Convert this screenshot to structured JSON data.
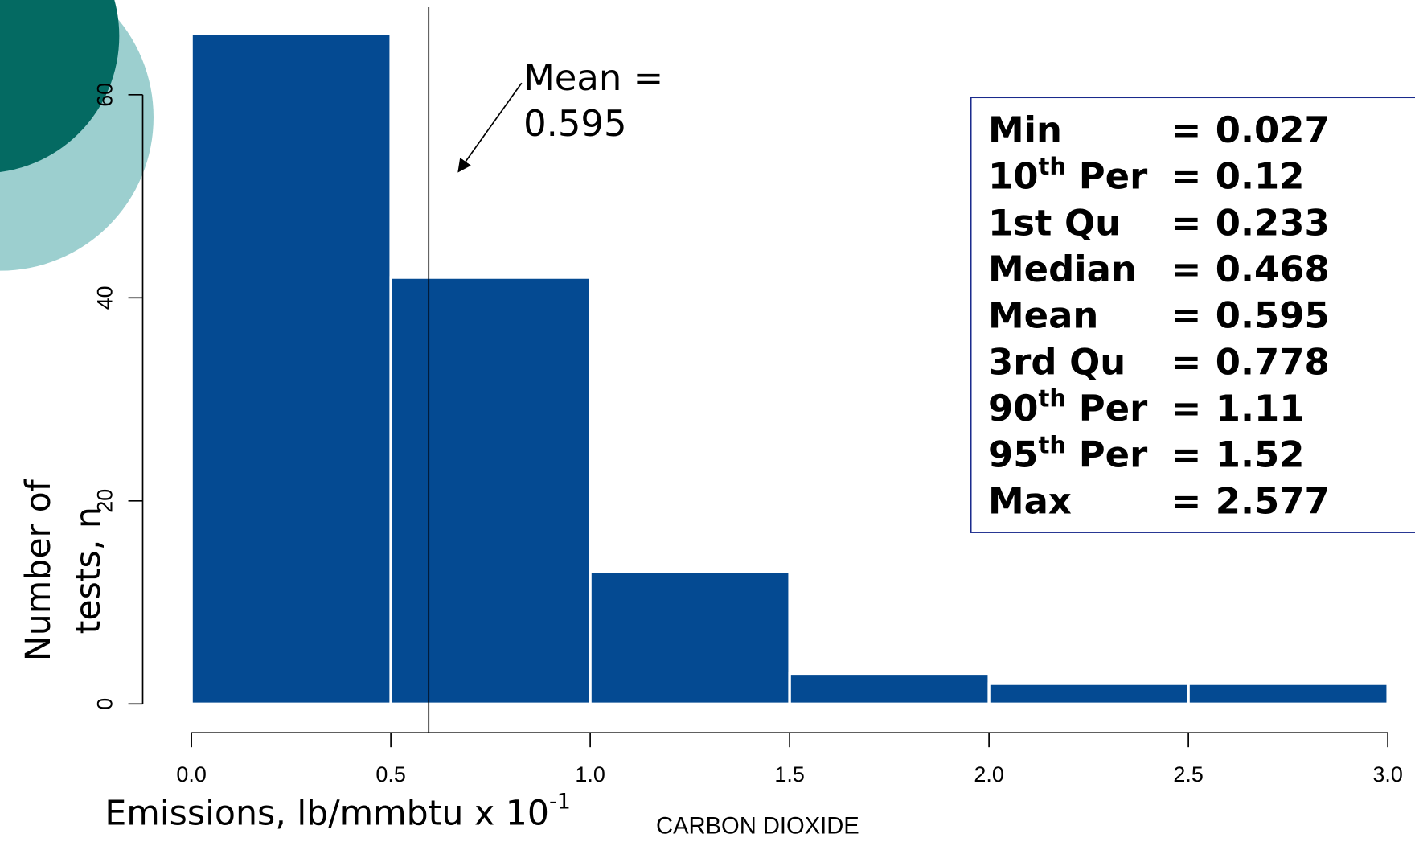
{
  "chart_data": {
    "type": "histogram",
    "bins": [
      0,
      0.5,
      1,
      1.5,
      2,
      2.5,
      3
    ],
    "counts": [
      66,
      42,
      13,
      3,
      2,
      2
    ],
    "color": "#044a92",
    "xlim": [
      0,
      3
    ],
    "xticks": [
      {
        "value": 0,
        "label": "0.0"
      },
      {
        "value": 0.5,
        "label": "0.5"
      },
      {
        "value": 1,
        "label": "1.0"
      },
      {
        "value": 1.5,
        "label": "1.5"
      },
      {
        "value": 2,
        "label": "2.0"
      },
      {
        "value": 2.5,
        "label": "2.5"
      },
      {
        "value": 3,
        "label": "3.0"
      }
    ],
    "ylim": [
      0,
      60
    ],
    "yticks": [
      0,
      20,
      40,
      60
    ],
    "y_label": [
      "Number of",
      "tests, n"
    ],
    "x_label": "Emissions, lb/mmbtu x 10",
    "x_label_exponent": "-1",
    "pollutant": "CARBON DIOXIDE",
    "mean": 0.595,
    "mean_annotation": "Mean =",
    "stats_separator": "=",
    "stats": [
      {
        "label": "Min",
        "value": 0.027
      },
      {
        "label": "10",
        "sup": "th",
        "rest": " Per",
        "value": 0.12
      },
      {
        "label": "1st Qu",
        "value": 0.233
      },
      {
        "label": "Median",
        "value": 0.468
      },
      {
        "label": "Mean",
        "value": 0.595
      },
      {
        "label": "3rd Qu",
        "value": 0.778
      },
      {
        "label": "90",
        "sup": "th",
        "rest": " Per",
        "value": 1.11
      },
      {
        "label": "95",
        "sup": "th",
        "rest": " Per",
        "value": 1.52
      },
      {
        "label": "Max",
        "value": 2.577
      }
    ]
  }
}
